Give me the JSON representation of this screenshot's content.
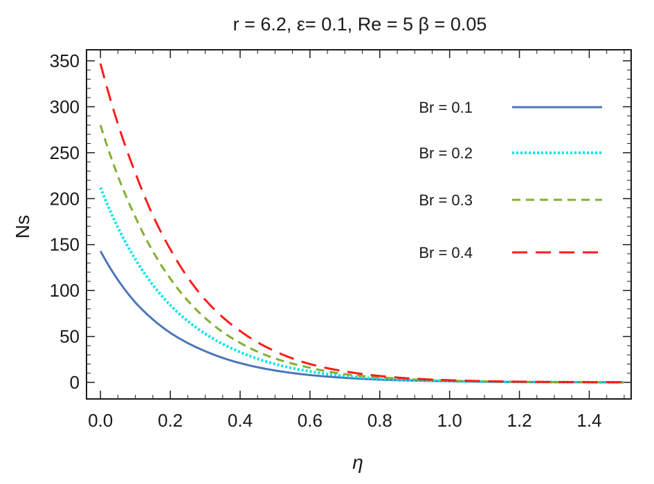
{
  "chart_data": {
    "type": "line",
    "title": "r = 6.2, ε= 0.1, Re = 5 β = 0.05",
    "xlabel": "η",
    "ylabel": "Ns",
    "xlim": [
      -0.04,
      1.52
    ],
    "ylim": [
      -18,
      362
    ],
    "x_ticks": [
      0.0,
      0.2,
      0.4,
      0.6,
      0.8,
      1.0,
      1.2,
      1.4
    ],
    "x_tick_labels": [
      "0.0",
      "0.2",
      "0.4",
      "0.6",
      "0.8",
      "1.0",
      "1.2",
      "1.4"
    ],
    "y_ticks": [
      0,
      50,
      100,
      150,
      200,
      250,
      300,
      350
    ],
    "y_tick_labels": [
      "0",
      "50",
      "100",
      "150",
      "200",
      "250",
      "300",
      "350"
    ],
    "legend_position": "top-right",
    "x": [
      0.0,
      0.1,
      0.2,
      0.3,
      0.4,
      0.5,
      0.6,
      0.7,
      0.8,
      0.9,
      1.0,
      1.1,
      1.2,
      1.3,
      1.4,
      1.5
    ],
    "series": [
      {
        "name": "Br = 0.1",
        "color": "#4a76b8",
        "dash": "solid",
        "values": [
          143,
          87,
          54,
          34,
          21,
          13,
          8,
          5,
          3,
          2,
          1.2,
          0.7,
          0.4,
          0.3,
          0.2,
          0.1
        ]
      },
      {
        "name": "Br = 0.2",
        "color": "#00e5ee",
        "dash": "dotted",
        "values": [
          212,
          134,
          84,
          53,
          33,
          20,
          12,
          7,
          4,
          2.5,
          1.5,
          0.9,
          0.5,
          0.3,
          0.2,
          0.1
        ]
      },
      {
        "name": "Br = 0.3",
        "color": "#7fb030",
        "dash": "dashed",
        "values": [
          280,
          180,
          113,
          70,
          43,
          26,
          16,
          9,
          5.5,
          3.2,
          1.9,
          1.1,
          0.6,
          0.4,
          0.2,
          0.1
        ]
      },
      {
        "name": "Br = 0.4",
        "color": "#ff1a1a",
        "dash": "longdash",
        "values": [
          347,
          228,
          145,
          90,
          56,
          34,
          20,
          12,
          7,
          4,
          2.4,
          1.4,
          0.8,
          0.5,
          0.3,
          0.2
        ]
      }
    ]
  }
}
